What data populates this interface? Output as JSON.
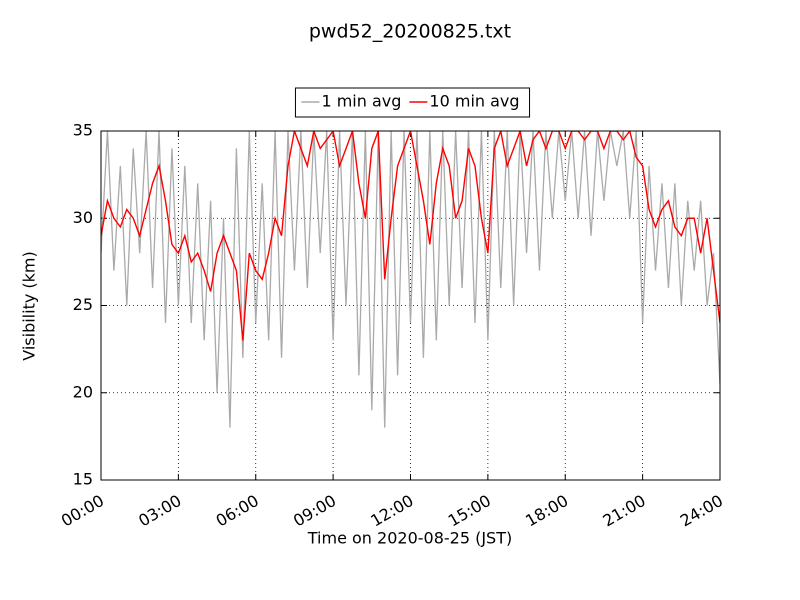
{
  "chart_data": {
    "type": "line",
    "title": "pwd52_20200825.txt",
    "xlabel": "Time on 2020-08-25 (JST)",
    "ylabel": "Visibility (km)",
    "legend": "top",
    "grid": true,
    "xlim": [
      "00:00",
      "24:00"
    ],
    "xticks": [
      "00:00",
      "03:00",
      "06:00",
      "09:00",
      "12:00",
      "15:00",
      "18:00",
      "21:00",
      "24:00"
    ],
    "ylim": [
      15,
      35
    ],
    "yticks": [
      15,
      20,
      25,
      30,
      35
    ],
    "x": [
      "00:00",
      "00:15",
      "00:30",
      "00:45",
      "01:00",
      "01:15",
      "01:30",
      "01:45",
      "02:00",
      "02:15",
      "02:30",
      "02:45",
      "03:00",
      "03:15",
      "03:30",
      "03:45",
      "04:00",
      "04:15",
      "04:30",
      "04:45",
      "05:00",
      "05:15",
      "05:30",
      "05:45",
      "06:00",
      "06:15",
      "06:30",
      "06:45",
      "07:00",
      "07:15",
      "07:30",
      "07:45",
      "08:00",
      "08:15",
      "08:30",
      "08:45",
      "09:00",
      "09:15",
      "09:30",
      "09:45",
      "10:00",
      "10:15",
      "10:30",
      "10:45",
      "11:00",
      "11:15",
      "11:30",
      "11:45",
      "12:00",
      "12:15",
      "12:30",
      "12:45",
      "13:00",
      "13:15",
      "13:30",
      "13:45",
      "14:00",
      "14:15",
      "14:30",
      "14:45",
      "15:00",
      "15:15",
      "15:30",
      "15:45",
      "16:00",
      "16:15",
      "16:30",
      "16:45",
      "17:00",
      "17:15",
      "17:30",
      "17:45",
      "18:00",
      "18:15",
      "18:30",
      "18:45",
      "19:00",
      "19:15",
      "19:30",
      "19:45",
      "20:00",
      "20:15",
      "20:30",
      "20:45",
      "21:00",
      "21:15",
      "21:30",
      "21:45",
      "22:00",
      "22:15",
      "22:30",
      "22:45",
      "23:00",
      "23:15",
      "23:30",
      "23:45",
      "24:00"
    ],
    "series": [
      {
        "name": "1 min avg",
        "color": "#aaaaaa",
        "values": [
          28,
          35,
          27,
          33,
          25,
          34,
          28,
          35,
          26,
          35,
          24,
          34,
          25,
          33,
          24,
          32,
          23,
          31,
          20,
          30,
          18,
          34,
          22,
          35,
          24,
          32,
          23,
          35,
          22,
          35,
          27,
          35,
          26,
          35,
          28,
          35,
          23,
          35,
          25,
          35,
          21,
          35,
          19,
          35,
          18,
          35,
          21,
          35,
          24,
          35,
          22,
          35,
          23,
          35,
          25,
          35,
          26,
          35,
          24,
          35,
          23,
          35,
          26,
          35,
          25,
          35,
          28,
          35,
          27,
          35,
          30,
          35,
          31,
          35,
          30,
          35,
          29,
          35,
          31,
          35,
          33,
          35,
          30,
          35,
          24,
          33,
          27,
          32,
          26,
          32,
          25,
          31,
          27,
          31,
          25,
          28,
          20.5
        ]
      },
      {
        "name": "10 min avg",
        "color": "#ff0000",
        "values": [
          29,
          31,
          30,
          29.5,
          30.5,
          30,
          29,
          30.5,
          32,
          33,
          31,
          28.5,
          28,
          29,
          27.5,
          28,
          27,
          25.8,
          28,
          29,
          28,
          27,
          23,
          28,
          27,
          26.5,
          28,
          30,
          29,
          33,
          35,
          34,
          33,
          35,
          34,
          34.5,
          35,
          33,
          34,
          35,
          32,
          30,
          34,
          35,
          26.5,
          30,
          33,
          34,
          35,
          33,
          31,
          28.5,
          32,
          34,
          33,
          30,
          31,
          34,
          33,
          30,
          28,
          34,
          35,
          33,
          34,
          35,
          33,
          34.5,
          35,
          34,
          35,
          35,
          34,
          35,
          35,
          34.5,
          35,
          35,
          34,
          35,
          35,
          34.5,
          35,
          33.5,
          33,
          30.5,
          29.5,
          30.5,
          31,
          29.5,
          29,
          30,
          30,
          28,
          30,
          27,
          24
        ]
      }
    ]
  }
}
